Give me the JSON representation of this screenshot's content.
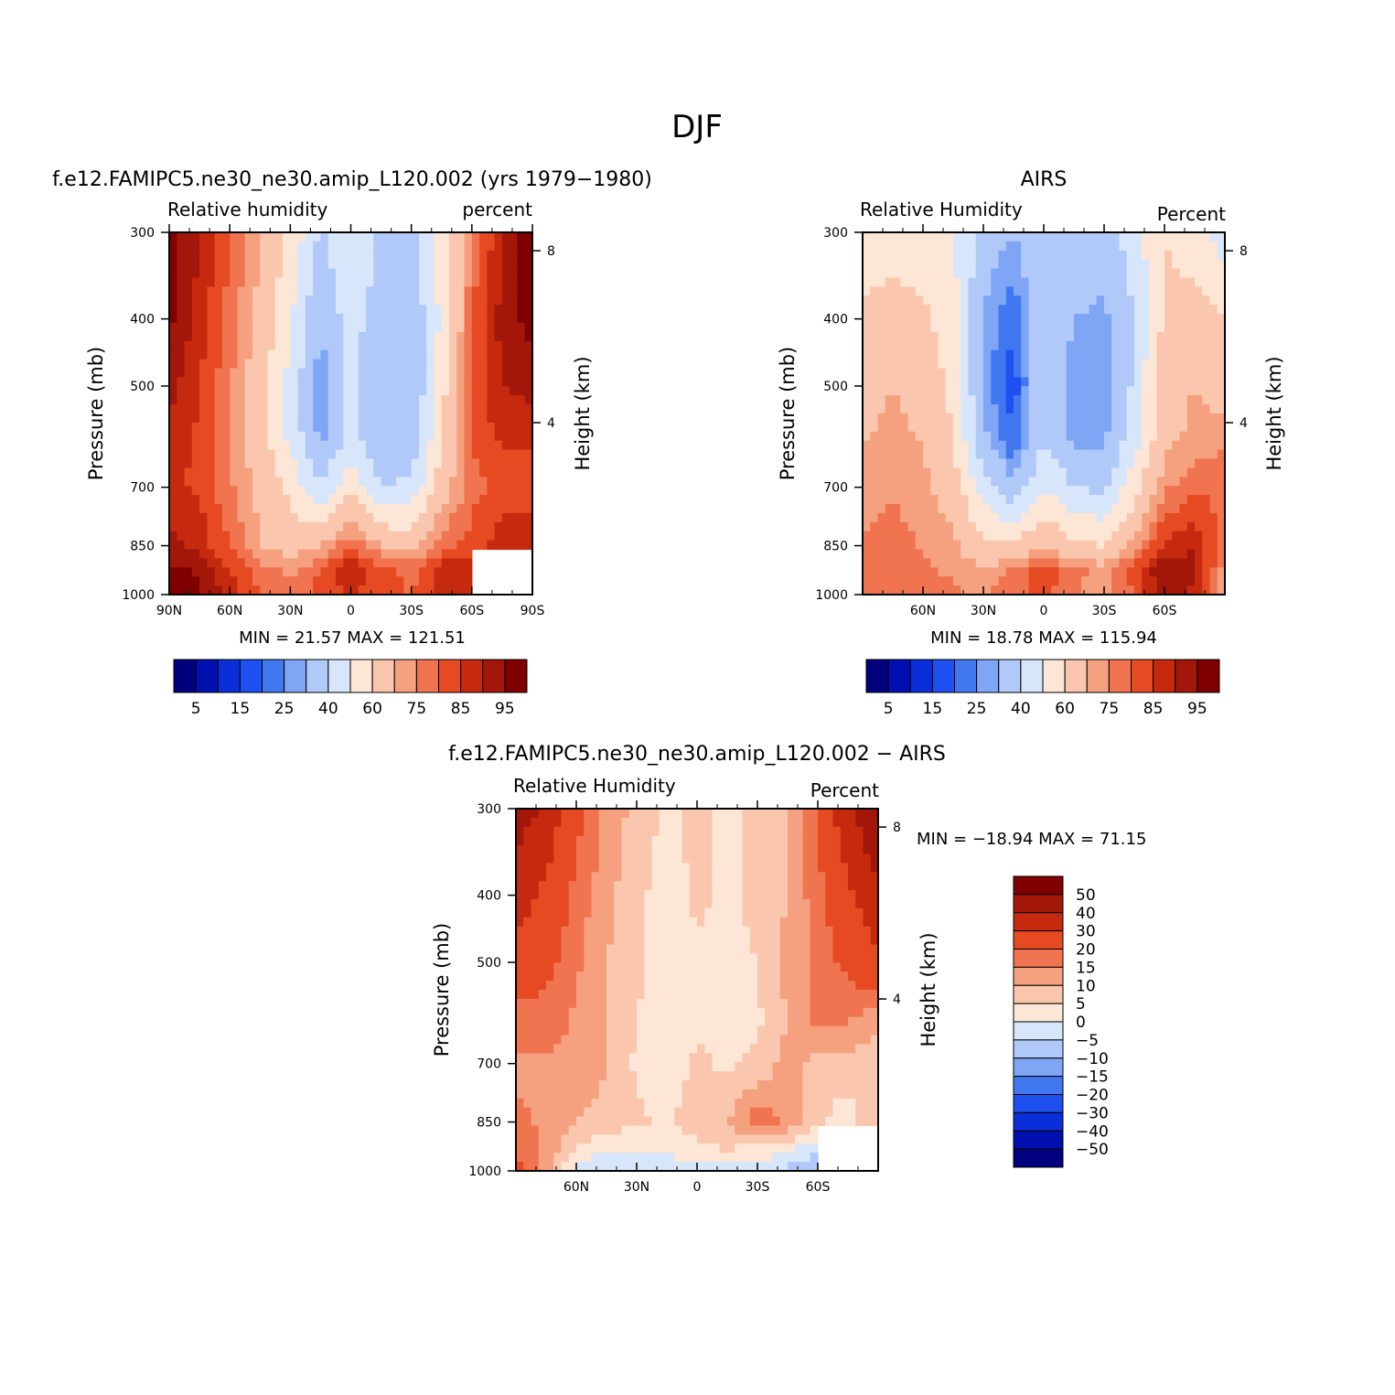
{
  "figure": {
    "title": "DJF",
    "colors": {
      "abs_palette": [
        "#00007f",
        "#0010b0",
        "#0a2fd8",
        "#1e50f0",
        "#4178f0",
        "#7ea6f5",
        "#b0c9f8",
        "#d7e6fb",
        "#fde6d5",
        "#fac7ae",
        "#f5a07f",
        "#f0744f",
        "#e64a22",
        "#c52a0e",
        "#a3170b",
        "#7f0000"
      ],
      "diff_palette": [
        "#00007f",
        "#0010b0",
        "#0a2fd8",
        "#1e50f0",
        "#4178f0",
        "#7ea6f5",
        "#b0c9f8",
        "#d7e6fb",
        "#fde6d5",
        "#fac7ae",
        "#f5a07f",
        "#f0744f",
        "#e64a22",
        "#c52a0e",
        "#a3170b",
        "#7f0000"
      ]
    }
  },
  "panels": [
    {
      "title": "f.e12.FAMIPC5.ne30_ne30.amip_L120.002 (yrs 1979−1980)",
      "left_label": "Relative humidity",
      "right_label": "percent",
      "ylabel": "Pressure (mb)",
      "y2label": "Height (km)",
      "stats": "MIN =   21.57   MAX =  121.51"
    },
    {
      "title": "AIRS",
      "left_label": "Relative Humidity",
      "right_label": "Percent",
      "ylabel": "Pressure (mb)",
      "y2label": "Height (km)",
      "stats": "MIN =   18.78   MAX =  115.94"
    },
    {
      "title": "f.e12.FAMIPC5.ne30_ne30.amip_L120.002 − AIRS",
      "left_label": "Relative Humidity",
      "right_label": "Percent",
      "ylabel": "Pressure (mb)",
      "y2label": "Height (km)",
      "stats": "MIN = −18.94   MAX =   71.15"
    }
  ],
  "chart_data": [
    {
      "type": "heatmap",
      "title": "f.e12.FAMIPC5.ne30_ne30.amip_L120.002 (yrs 1979−1980)",
      "subtitle_left": "Relative humidity",
      "subtitle_right": "percent",
      "xlabel": "",
      "ylabel": "Pressure (mb)",
      "y2label": "Height (km)",
      "x_ticks": [
        "90N",
        "60N",
        "30N",
        "0",
        "30S",
        "60S",
        "90S"
      ],
      "y_ticks": [
        300,
        400,
        500,
        700,
        850,
        1000
      ],
      "y2_ticks": [
        8,
        4
      ],
      "x": [
        90,
        75,
        60,
        45,
        30,
        15,
        0,
        -15,
        -30,
        -45,
        -60,
        -75,
        -90
      ],
      "y": [
        300,
        400,
        500,
        600,
        700,
        850,
        925,
        1000
      ],
      "z": [
        [
          98,
          90,
          80,
          70,
          58,
          38,
          52,
          38,
          35,
          55,
          75,
          90,
          98
        ],
        [
          96,
          88,
          78,
          68,
          52,
          30,
          45,
          34,
          32,
          52,
          80,
          92,
          97
        ],
        [
          92,
          85,
          76,
          64,
          46,
          26,
          42,
          30,
          30,
          56,
          82,
          90,
          92
        ],
        [
          88,
          84,
          75,
          65,
          48,
          28,
          45,
          32,
          32,
          60,
          80,
          86,
          86
        ],
        [
          86,
          84,
          76,
          68,
          58,
          40,
          58,
          40,
          42,
          66,
          78,
          82,
          82
        ],
        [
          92,
          88,
          80,
          70,
          66,
          70,
          80,
          70,
          68,
          78,
          82,
          88,
          88
        ],
        [
          97,
          94,
          85,
          78,
          74,
          80,
          90,
          82,
          78,
          88,
          90,
          null,
          null
        ],
        [
          98,
          96,
          88,
          80,
          78,
          82,
          86,
          82,
          80,
          86,
          88,
          null,
          null
        ]
      ],
      "levels": [
        5,
        10,
        15,
        20,
        25,
        30,
        40,
        50,
        60,
        70,
        75,
        80,
        85,
        90,
        95
      ],
      "colorbar_labels": [
        "5",
        "15",
        "25",
        "40",
        "60",
        "75",
        "85",
        "95"
      ],
      "stats": {
        "min": 21.57,
        "max": 121.51
      }
    },
    {
      "type": "heatmap",
      "title": "AIRS",
      "subtitle_left": "Relative Humidity",
      "subtitle_right": "Percent",
      "xlabel": "",
      "ylabel": "Pressure (mb)",
      "y2label": "Height (km)",
      "x_ticks": [
        "60N",
        "30N",
        "0",
        "30S",
        "60S"
      ],
      "y_ticks": [
        300,
        400,
        500,
        700,
        850,
        1000
      ],
      "y2_ticks": [
        8,
        4
      ],
      "x": [
        90,
        75,
        60,
        45,
        30,
        15,
        0,
        -15,
        -30,
        -45,
        -60,
        -75,
        -90
      ],
      "y": [
        300,
        400,
        500,
        600,
        700,
        850,
        925,
        1000
      ],
      "z": [
        [
          55,
          55,
          55,
          50,
          35,
          30,
          40,
          38,
          35,
          45,
          60,
          55,
          45
        ],
        [
          62,
          64,
          62,
          55,
          30,
          20,
          38,
          30,
          28,
          40,
          62,
          64,
          60
        ],
        [
          66,
          70,
          66,
          58,
          28,
          17,
          38,
          26,
          26,
          42,
          66,
          70,
          66
        ],
        [
          70,
          72,
          70,
          60,
          32,
          20,
          40,
          28,
          28,
          46,
          68,
          72,
          74
        ],
        [
          72,
          74,
          72,
          66,
          45,
          32,
          50,
          40,
          38,
          56,
          74,
          78,
          80
        ],
        [
          76,
          78,
          74,
          72,
          62,
          62,
          70,
          62,
          60,
          72,
          86,
          90,
          76
        ],
        [
          78,
          80,
          76,
          74,
          72,
          76,
          84,
          76,
          74,
          82,
          95,
          92,
          72
        ],
        [
          76,
          80,
          78,
          76,
          74,
          78,
          82,
          76,
          72,
          80,
          95,
          86,
          70
        ]
      ],
      "levels": [
        5,
        10,
        15,
        20,
        25,
        30,
        40,
        50,
        60,
        70,
        75,
        80,
        85,
        90,
        95
      ],
      "colorbar_labels": [
        "5",
        "15",
        "25",
        "40",
        "60",
        "75",
        "85",
        "95"
      ],
      "stats": {
        "min": 18.78,
        "max": 115.94
      }
    },
    {
      "type": "heatmap",
      "title": "f.e12.FAMIPC5.ne30_ne30.amip_L120.002 − AIRS",
      "subtitle_left": "Relative Humidity",
      "subtitle_right": "Percent",
      "xlabel": "",
      "ylabel": "Pressure (mb)",
      "y2label": "Height (km)",
      "x_ticks": [
        "60N",
        "30N",
        "0",
        "30S",
        "60S"
      ],
      "y_ticks": [
        300,
        400,
        500,
        700,
        850,
        1000
      ],
      "y2_ticks": [
        8,
        4
      ],
      "x": [
        90,
        75,
        60,
        45,
        30,
        15,
        0,
        -15,
        -30,
        -45,
        -60,
        -75,
        -90
      ],
      "y": [
        300,
        400,
        500,
        600,
        700,
        850,
        925,
        1000
      ],
      "z": [
        [
          45,
          38,
          22,
          14,
          8,
          4,
          6,
          4,
          6,
          10,
          20,
          38,
          50
        ],
        [
          35,
          28,
          18,
          12,
          6,
          3,
          6,
          4,
          6,
          10,
          18,
          28,
          38
        ],
        [
          26,
          22,
          16,
          10,
          6,
          3,
          4,
          4,
          5,
          12,
          16,
          22,
          28
        ],
        [
          18,
          18,
          14,
          10,
          5,
          2,
          4,
          3,
          4,
          10,
          18,
          16,
          12
        ],
        [
          14,
          14,
          14,
          10,
          4,
          2,
          6,
          4,
          6,
          12,
          8,
          8,
          6
        ],
        [
          16,
          14,
          10,
          8,
          6,
          4,
          8,
          10,
          18,
          14,
          6,
          2,
          10
        ],
        [
          20,
          14,
          4,
          2,
          0,
          2,
          4,
          6,
          4,
          2,
          -4,
          null,
          null
        ],
        [
          22,
          12,
          -2,
          -6,
          -2,
          -4,
          -2,
          -4,
          -2,
          -6,
          -10,
          null,
          null
        ]
      ],
      "levels": [
        -50,
        -40,
        -30,
        -20,
        -15,
        -10,
        -5,
        0,
        5,
        10,
        15,
        20,
        30,
        40,
        50
      ],
      "colorbar_labels": [
        "50",
        "40",
        "30",
        "20",
        "15",
        "10",
        "5",
        "0",
        "−5",
        "−10",
        "−15",
        "−20",
        "−30",
        "−40",
        "−50"
      ],
      "stats": {
        "min": -18.94,
        "max": 71.15
      }
    }
  ]
}
